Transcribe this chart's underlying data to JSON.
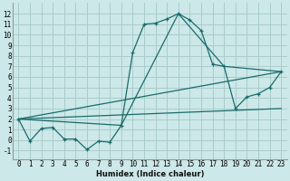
{
  "xlabel": "Humidex (Indice chaleur)",
  "bg_color": "#cce8e8",
  "grid_color": "#aacccc",
  "line_color": "#1a6b6b",
  "xlim": [
    -0.5,
    23.5
  ],
  "ylim": [
    -1.8,
    13.0
  ],
  "xticks": [
    0,
    1,
    2,
    3,
    4,
    5,
    6,
    7,
    8,
    9,
    10,
    11,
    12,
    13,
    14,
    15,
    16,
    17,
    18,
    19,
    20,
    21,
    22,
    23
  ],
  "yticks": [
    -1,
    0,
    1,
    2,
    3,
    4,
    5,
    6,
    7,
    8,
    9,
    10,
    11,
    12
  ],
  "curve1_x": [
    0,
    1,
    2,
    3,
    4,
    5,
    6,
    7,
    8,
    9,
    10,
    11,
    12,
    13,
    14,
    15,
    16,
    17,
    18,
    19,
    20,
    21,
    22,
    23
  ],
  "curve1_y": [
    2.0,
    -0.1,
    1.1,
    1.2,
    0.1,
    0.1,
    -0.9,
    -0.1,
    -0.2,
    1.4,
    8.3,
    11.0,
    11.1,
    11.5,
    12.0,
    11.4,
    10.4,
    7.2,
    7.0,
    3.0,
    4.1,
    4.4,
    5.0,
    6.5
  ],
  "curve2_x": [
    0,
    23
  ],
  "curve2_y": [
    2.0,
    6.5
  ],
  "curve3_x": [
    0,
    9,
    14,
    18,
    23
  ],
  "curve3_y": [
    2.0,
    1.4,
    12.0,
    7.0,
    6.5
  ],
  "curve4_x": [
    0,
    23
  ],
  "curve4_y": [
    2.0,
    3.0
  ]
}
